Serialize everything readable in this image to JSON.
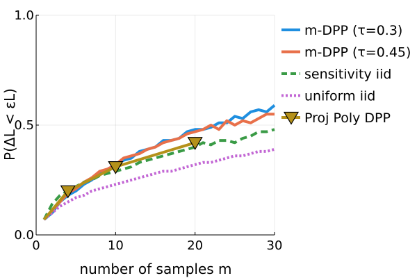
{
  "chart_data": {
    "type": "line",
    "title": "",
    "xlabel": "number of samples m",
    "ylabel": "P(ΔL < εL)",
    "xlim": [
      0,
      30
    ],
    "ylim": [
      0,
      1
    ],
    "xticks": [
      0,
      10,
      20,
      30
    ],
    "yticks": [
      0.0,
      0.5,
      1.0
    ],
    "xtick_labels": [
      "0",
      "10",
      "20",
      "30"
    ],
    "ytick_labels": [
      "0.0",
      "0.5",
      "1.0"
    ],
    "grid": true,
    "legend_position": "top-right",
    "series": [
      {
        "name": "m-DPP (τ=0.3)",
        "color": "#1f8fe0",
        "style": "solid",
        "x": [
          1,
          2,
          3,
          4,
          5,
          6,
          7,
          8,
          9,
          10,
          11,
          12,
          13,
          14,
          15,
          16,
          17,
          18,
          19,
          20,
          21,
          22,
          23,
          24,
          25,
          26,
          27,
          28,
          29,
          30
        ],
        "y": [
          0.07,
          0.1,
          0.15,
          0.18,
          0.2,
          0.23,
          0.25,
          0.28,
          0.3,
          0.32,
          0.34,
          0.35,
          0.38,
          0.39,
          0.4,
          0.43,
          0.43,
          0.44,
          0.47,
          0.48,
          0.48,
          0.49,
          0.51,
          0.51,
          0.54,
          0.53,
          0.56,
          0.57,
          0.56,
          0.59
        ]
      },
      {
        "name": "m-DPP (τ=0.45)",
        "color": "#e8704a",
        "style": "solid",
        "x": [
          1,
          2,
          3,
          4,
          5,
          6,
          7,
          8,
          9,
          10,
          11,
          12,
          13,
          14,
          15,
          16,
          17,
          18,
          19,
          20,
          21,
          22,
          23,
          24,
          25,
          26,
          27,
          28,
          29,
          30
        ],
        "y": [
          0.07,
          0.11,
          0.15,
          0.19,
          0.21,
          0.24,
          0.26,
          0.29,
          0.3,
          0.32,
          0.35,
          0.36,
          0.37,
          0.39,
          0.4,
          0.42,
          0.43,
          0.44,
          0.46,
          0.47,
          0.48,
          0.5,
          0.48,
          0.52,
          0.5,
          0.52,
          0.51,
          0.53,
          0.55,
          0.55
        ]
      },
      {
        "name": "sensitivity iid",
        "color": "#3a9b46",
        "style": "dashed",
        "x": [
          1,
          2,
          3,
          4,
          5,
          6,
          7,
          8,
          9,
          10,
          11,
          12,
          13,
          14,
          15,
          16,
          17,
          18,
          19,
          20,
          21,
          22,
          23,
          24,
          25,
          26,
          27,
          28,
          29,
          30
        ],
        "y": [
          0.07,
          0.14,
          0.18,
          0.2,
          0.22,
          0.24,
          0.25,
          0.27,
          0.28,
          0.29,
          0.3,
          0.31,
          0.33,
          0.34,
          0.35,
          0.36,
          0.37,
          0.38,
          0.39,
          0.4,
          0.42,
          0.41,
          0.43,
          0.43,
          0.42,
          0.44,
          0.45,
          0.47,
          0.47,
          0.48
        ]
      },
      {
        "name": "uniform iid",
        "color": "#c266d4",
        "style": "dotted",
        "x": [
          1,
          2,
          3,
          4,
          5,
          6,
          7,
          8,
          9,
          10,
          11,
          12,
          13,
          14,
          15,
          16,
          17,
          18,
          19,
          20,
          21,
          22,
          23,
          24,
          25,
          26,
          27,
          28,
          29,
          30
        ],
        "y": [
          0.07,
          0.1,
          0.13,
          0.15,
          0.17,
          0.18,
          0.2,
          0.21,
          0.22,
          0.23,
          0.24,
          0.25,
          0.26,
          0.27,
          0.28,
          0.29,
          0.29,
          0.3,
          0.31,
          0.32,
          0.33,
          0.33,
          0.34,
          0.35,
          0.36,
          0.36,
          0.37,
          0.38,
          0.38,
          0.39
        ]
      },
      {
        "name": "Proj Poly DPP",
        "color": "#b5911a",
        "style": "solid-marker",
        "x": [
          1,
          4,
          10,
          20
        ],
        "y": [
          0.07,
          0.2,
          0.31,
          0.42
        ]
      }
    ]
  }
}
